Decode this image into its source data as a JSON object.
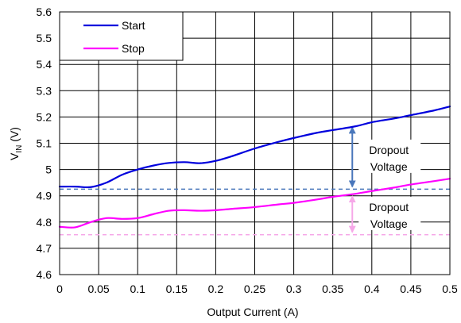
{
  "chart_data": {
    "type": "line",
    "xlabel": "Output Current (A)",
    "ylabel": {
      "main": "V",
      "sub": "IN",
      "unit": " (V)"
    },
    "xlim": [
      0,
      0.5
    ],
    "ylim": [
      4.6,
      5.6
    ],
    "xticks": [
      0,
      0.05,
      0.1,
      0.15,
      0.2,
      0.25,
      0.3,
      0.35,
      0.4,
      0.45,
      0.5
    ],
    "xtick_labels": [
      "0",
      "0.05",
      "0.1",
      "0.15",
      "0.2",
      "0.25",
      "0.3",
      "0.35",
      "0.4",
      "0.45",
      "0.5"
    ],
    "yticks": [
      4.6,
      4.7,
      4.8,
      4.9,
      5.0,
      5.1,
      5.2,
      5.3,
      5.4,
      5.5,
      5.6
    ],
    "ytick_labels": [
      "4.6",
      "4.7",
      "4.8",
      "4.9",
      "5",
      "5.1",
      "5.2",
      "5.3",
      "5.4",
      "5.5",
      "5.6"
    ],
    "grid": true,
    "legend_position": "top-left",
    "series": [
      {
        "name": "Start",
        "color": "#0000dd",
        "x": [
          0,
          0.02,
          0.04,
          0.06,
          0.08,
          0.1,
          0.12,
          0.14,
          0.16,
          0.18,
          0.2,
          0.22,
          0.25,
          0.28,
          0.3,
          0.33,
          0.35,
          0.38,
          0.4,
          0.43,
          0.45,
          0.48,
          0.5
        ],
        "y": [
          4.935,
          4.935,
          4.933,
          4.95,
          4.98,
          5.0,
          5.015,
          5.025,
          5.028,
          5.024,
          5.033,
          5.05,
          5.08,
          5.105,
          5.12,
          5.14,
          5.15,
          5.165,
          5.18,
          5.195,
          5.207,
          5.225,
          5.24
        ]
      },
      {
        "name": "Stop",
        "color": "#ff00ff",
        "x": [
          0,
          0.02,
          0.04,
          0.06,
          0.08,
          0.1,
          0.12,
          0.14,
          0.16,
          0.18,
          0.2,
          0.22,
          0.25,
          0.28,
          0.3,
          0.33,
          0.35,
          0.38,
          0.4,
          0.43,
          0.45,
          0.48,
          0.5
        ],
        "y": [
          4.782,
          4.78,
          4.8,
          4.815,
          4.812,
          4.815,
          4.83,
          4.843,
          4.845,
          4.843,
          4.845,
          4.85,
          4.857,
          4.867,
          4.873,
          4.886,
          4.896,
          4.908,
          4.918,
          4.932,
          4.943,
          4.956,
          4.965
        ]
      }
    ],
    "reference_lines": [
      {
        "y": 4.925,
        "color": "#4a77bb",
        "style": "dashed"
      },
      {
        "y": 4.752,
        "color": "#f6a8e8",
        "style": "dashed"
      }
    ],
    "annotations": [
      {
        "text": [
          "Dropout",
          "Voltage"
        ],
        "x": 0.375,
        "y_from": 5.17,
        "y_to": 4.925,
        "color": "#4a77bb"
      },
      {
        "text": [
          "Dropout",
          "Voltage"
        ],
        "x": 0.375,
        "y_from": 4.908,
        "y_to": 4.752,
        "color": "#f6a8e8"
      }
    ]
  }
}
